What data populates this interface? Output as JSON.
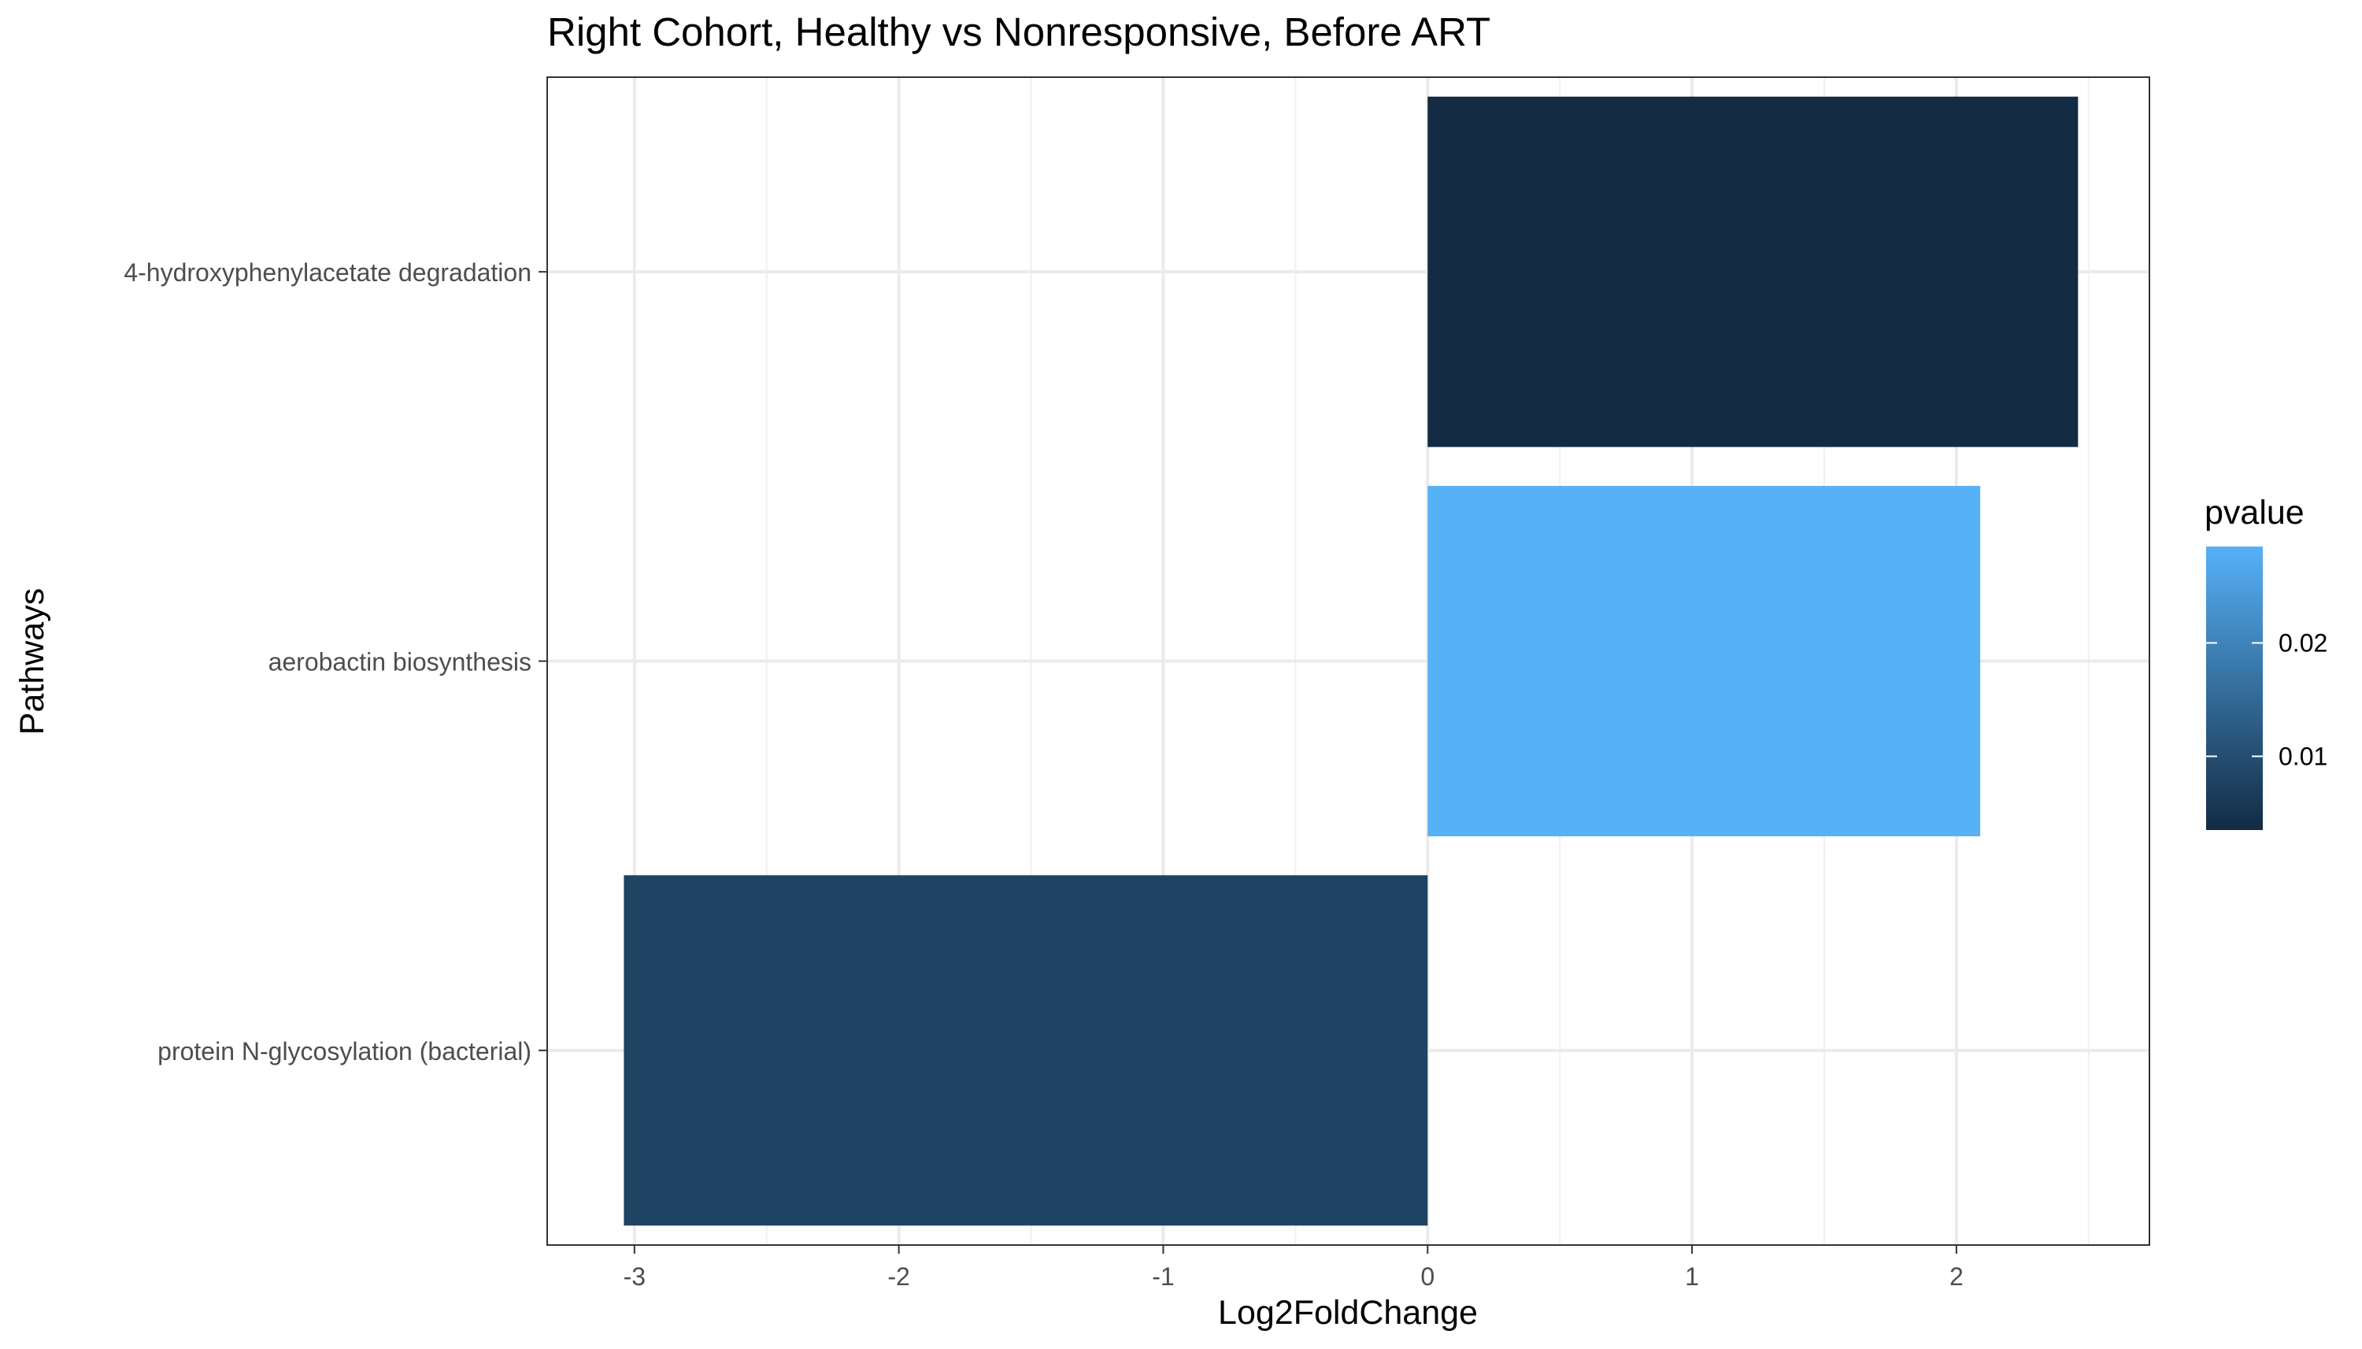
{
  "chart_data": {
    "type": "bar",
    "orientation": "horizontal",
    "title": "Right Cohort, Healthy vs Nonresponsive, Before ART",
    "xlabel": "Log2FoldChange",
    "ylabel": "Pathways",
    "categories": [
      "4-hydroxyphenylacetate degradation",
      "aerobactin biosynthesis",
      "protein N-glycosylation (bacterial)"
    ],
    "values": [
      2.46,
      2.09,
      -3.04
    ],
    "pvalues": [
      0.0035,
      0.0285,
      0.008
    ],
    "xlim": [
      -3.33,
      2.73
    ],
    "xticks": [
      -3,
      -2,
      -1,
      0,
      1,
      2
    ],
    "grid": true,
    "legend": {
      "title": "pvalue",
      "ticks": [
        0.01,
        0.02
      ],
      "range": [
        0.0035,
        0.0285
      ],
      "colors": [
        "#132B43",
        "#56B1F7"
      ],
      "placement": "right"
    }
  }
}
